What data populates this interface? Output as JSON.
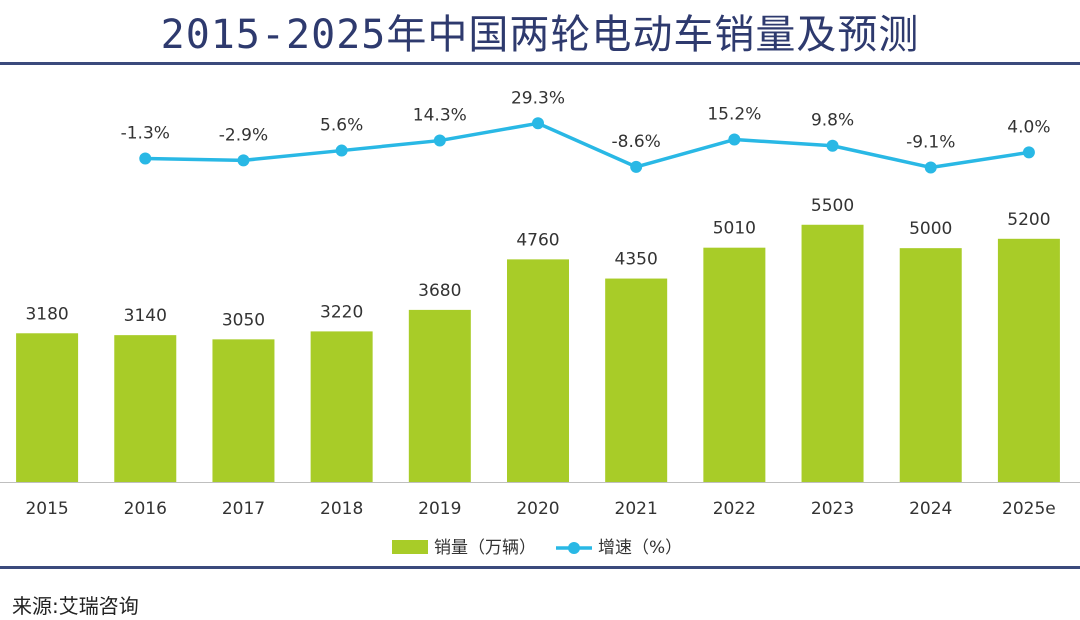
{
  "title": "2015-2025年中国两轮电动车销量及预测",
  "source": "来源:艾瑞咨询",
  "colors": {
    "bar": "#A8CC28",
    "line": "#29B8E5",
    "title": "#2E3A6E",
    "rule": "#3B4A7C"
  },
  "chart_data": {
    "type": "bar",
    "categories": [
      "2015",
      "2016",
      "2017",
      "2018",
      "2019",
      "2020",
      "2021",
      "2022",
      "2023",
      "2024",
      "2025e"
    ],
    "series": [
      {
        "name": "销量（万辆）",
        "type": "bar",
        "values": [
          3180,
          3140,
          3050,
          3220,
          3680,
          4760,
          4350,
          5010,
          5500,
          5000,
          5200
        ],
        "labels": [
          "3180",
          "3140",
          "3050",
          "3220",
          "3680",
          "4760",
          "4350",
          "5010",
          "5500",
          "5000",
          "5200"
        ]
      },
      {
        "name": "增速（%）",
        "type": "line",
        "values": [
          null,
          -1.3,
          -2.9,
          5.6,
          14.3,
          29.3,
          -8.6,
          15.2,
          9.8,
          -9.1,
          4.0
        ],
        "labels": [
          "",
          "-1.3%",
          "-2.9%",
          "5.6%",
          "14.3%",
          "29.3%",
          "-8.6%",
          "15.2%",
          "9.8%",
          "-9.1%",
          "4.0%"
        ]
      }
    ],
    "legend": [
      "销量（万辆）",
      "增速（%）"
    ],
    "legend_position": "bottom",
    "xlabel": "",
    "ylabel": "",
    "ylim_bar": [
      0,
      6500
    ],
    "ylim_line": [
      -10,
      30
    ],
    "grid": false
  }
}
